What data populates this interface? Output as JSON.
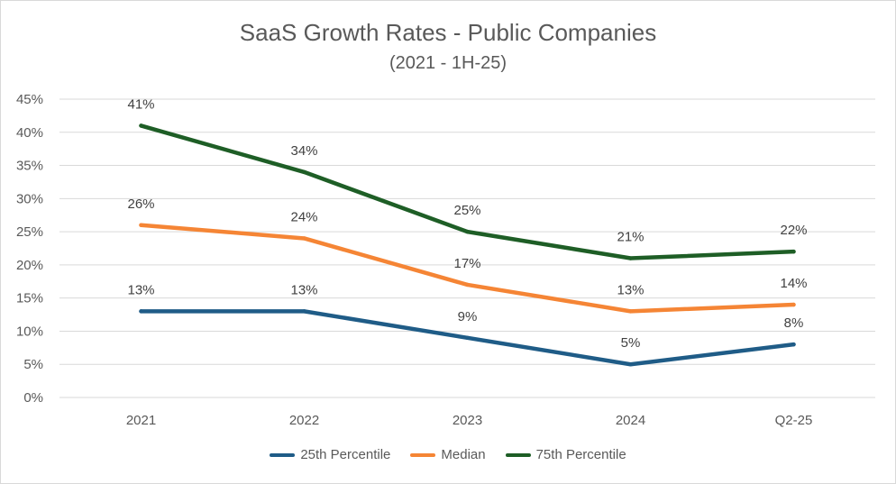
{
  "chart_data": {
    "type": "line",
    "title": "SaaS Growth Rates - Public Companies",
    "subtitle": "(2021 - 1H-25)",
    "categories": [
      "2021",
      "2022",
      "2023",
      "2024",
      "Q2-25"
    ],
    "y_ticks": [
      "0%",
      "5%",
      "10%",
      "15%",
      "20%",
      "25%",
      "30%",
      "35%",
      "40%",
      "45%"
    ],
    "ylim": [
      0,
      45
    ],
    "grid": true,
    "legend_position": "bottom",
    "series": [
      {
        "name": "25th Percentile",
        "color": "#1f5c87",
        "values": [
          13,
          13,
          9,
          5,
          8
        ],
        "labels": [
          "13%",
          "13%",
          "9%",
          "5%",
          "8%"
        ]
      },
      {
        "name": "Median",
        "color": "#f58535",
        "values": [
          26,
          24,
          17,
          13,
          14
        ],
        "labels": [
          "26%",
          "24%",
          "17%",
          "13%",
          "14%"
        ]
      },
      {
        "name": "75th Percentile",
        "color": "#1e5e26",
        "values": [
          41,
          34,
          25,
          21,
          22
        ],
        "labels": [
          "41%",
          "34%",
          "25%",
          "21%",
          "22%"
        ]
      }
    ]
  }
}
